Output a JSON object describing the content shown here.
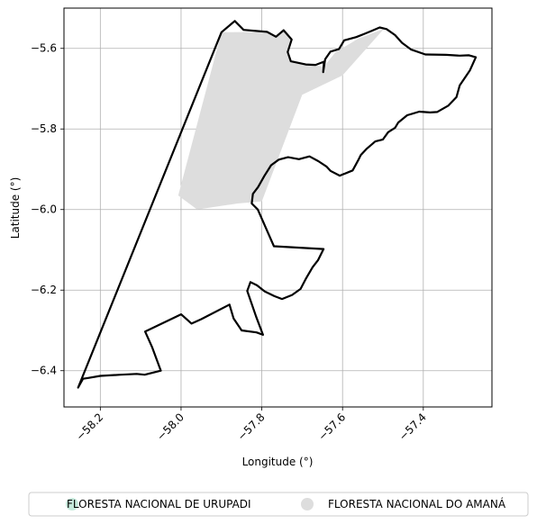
{
  "map": {
    "xlabel": "Longitude (°)",
    "ylabel": "Latitude (°)",
    "xlim": [
      -58.29,
      -57.23
    ],
    "ylim": [
      -6.49,
      -5.5
    ],
    "grid": true,
    "x_ticks": [
      {
        "value": -58.2,
        "label": "−58.2"
      },
      {
        "value": -58.0,
        "label": "−58.0"
      },
      {
        "value": -57.8,
        "label": "−57.8"
      },
      {
        "value": -57.6,
        "label": "−57.6"
      },
      {
        "value": -57.4,
        "label": "−57.4"
      }
    ],
    "y_ticks": [
      {
        "value": -5.6,
        "label": "−5.6"
      },
      {
        "value": -5.8,
        "label": "−5.8"
      },
      {
        "value": -6.0,
        "label": "−6.0"
      },
      {
        "value": -6.2,
        "label": "−6.2"
      },
      {
        "value": -6.4,
        "label": "−6.4"
      }
    ],
    "legend": {
      "placement": "bottom",
      "items": [
        {
          "label": "FLORESTA NACIONAL DE URUPADI",
          "color": "#c7eadc"
        },
        {
          "label": "FLORESTA NACIONAL DO AMANÁ",
          "color": "#dddddd"
        }
      ]
    },
    "regions": [
      {
        "name": "FLORESTA NACIONAL DO AMANÁ",
        "fill": "#dddddd",
        "stroke": "none",
        "coords": [
          [
            -58.007,
            -5.965
          ],
          [
            -57.9,
            -5.56
          ],
          [
            -57.787,
            -5.559
          ],
          [
            -57.762,
            -5.571
          ],
          [
            -57.746,
            -5.555
          ],
          [
            -57.726,
            -5.578
          ],
          [
            -57.736,
            -5.609
          ],
          [
            -57.728,
            -5.632
          ],
          [
            -57.691,
            -5.64
          ],
          [
            -57.646,
            -5.645
          ],
          [
            -57.618,
            -5.61
          ],
          [
            -57.56,
            -5.575
          ],
          [
            -57.498,
            -5.552
          ],
          [
            -57.6,
            -5.667
          ],
          [
            -57.7,
            -5.715
          ],
          [
            -57.8,
            -5.98
          ],
          [
            -57.86,
            -5.985
          ],
          [
            -57.96,
            -6.0
          ],
          [
            -58.007,
            -5.965
          ]
        ]
      },
      {
        "name": "FLORESTA NACIONAL DE URUPADI",
        "fill": "none",
        "stroke": "#000000",
        "coords": [
          [
            -58.255,
            -6.442
          ],
          [
            -57.9,
            -5.56
          ],
          [
            -57.867,
            -5.532
          ],
          [
            -57.845,
            -5.554
          ],
          [
            -57.787,
            -5.559
          ],
          [
            -57.765,
            -5.571
          ],
          [
            -57.746,
            -5.555
          ],
          [
            -57.726,
            -5.578
          ],
          [
            -57.736,
            -5.609
          ],
          [
            -57.728,
            -5.632
          ],
          [
            -57.691,
            -5.64
          ],
          [
            -57.667,
            -5.641
          ],
          [
            -57.646,
            -5.633
          ],
          [
            -57.648,
            -5.659
          ],
          [
            -57.643,
            -5.627
          ],
          [
            -57.63,
            -5.608
          ],
          [
            -57.609,
            -5.602
          ],
          [
            -57.596,
            -5.58
          ],
          [
            -57.566,
            -5.572
          ],
          [
            -57.546,
            -5.564
          ],
          [
            -57.527,
            -5.556
          ],
          [
            -57.508,
            -5.548
          ],
          [
            -57.491,
            -5.552
          ],
          [
            -57.47,
            -5.567
          ],
          [
            -57.453,
            -5.586
          ],
          [
            -57.43,
            -5.603
          ],
          [
            -57.395,
            -5.615
          ],
          [
            -57.344,
            -5.616
          ],
          [
            -57.31,
            -5.618
          ],
          [
            -57.287,
            -5.617
          ],
          [
            -57.27,
            -5.622
          ],
          [
            -57.285,
            -5.655
          ],
          [
            -57.31,
            -5.692
          ],
          [
            -57.318,
            -5.721
          ],
          [
            -57.338,
            -5.742
          ],
          [
            -57.366,
            -5.758
          ],
          [
            -57.383,
            -5.759
          ],
          [
            -57.41,
            -5.757
          ],
          [
            -57.44,
            -5.766
          ],
          [
            -57.462,
            -5.784
          ],
          [
            -57.47,
            -5.797
          ],
          [
            -57.487,
            -5.808
          ],
          [
            -57.5,
            -5.826
          ],
          [
            -57.519,
            -5.831
          ],
          [
            -57.541,
            -5.85
          ],
          [
            -57.555,
            -5.865
          ],
          [
            -57.561,
            -5.877
          ],
          [
            -57.575,
            -5.903
          ],
          [
            -57.607,
            -5.916
          ],
          [
            -57.63,
            -5.904
          ],
          [
            -57.64,
            -5.893
          ],
          [
            -57.66,
            -5.88
          ],
          [
            -57.682,
            -5.868
          ],
          [
            -57.708,
            -5.875
          ],
          [
            -57.735,
            -5.87
          ],
          [
            -57.758,
            -5.876
          ],
          [
            -57.777,
            -5.89
          ],
          [
            -57.794,
            -5.917
          ],
          [
            -57.809,
            -5.944
          ],
          [
            -57.822,
            -5.961
          ],
          [
            -57.825,
            -5.985
          ],
          [
            -57.81,
            -6.0
          ],
          [
            -57.77,
            -6.091
          ],
          [
            -57.647,
            -6.098
          ],
          [
            -57.661,
            -6.126
          ],
          [
            -57.674,
            -6.143
          ],
          [
            -57.691,
            -6.172
          ],
          [
            -57.704,
            -6.197
          ],
          [
            -57.725,
            -6.212
          ],
          [
            -57.75,
            -6.222
          ],
          [
            -57.769,
            -6.215
          ],
          [
            -57.793,
            -6.203
          ],
          [
            -57.812,
            -6.188
          ],
          [
            -57.828,
            -6.18
          ],
          [
            -57.836,
            -6.202
          ],
          [
            -57.814,
            -6.266
          ],
          [
            -57.797,
            -6.311
          ],
          [
            -57.813,
            -6.305
          ],
          [
            -57.85,
            -6.3
          ],
          [
            -57.87,
            -6.27
          ],
          [
            -57.88,
            -6.236
          ],
          [
            -57.95,
            -6.272
          ],
          [
            -57.974,
            -6.283
          ],
          [
            -58.0,
            -6.26
          ],
          [
            -58.089,
            -6.303
          ],
          [
            -58.072,
            -6.341
          ],
          [
            -58.05,
            -6.4
          ],
          [
            -58.09,
            -6.41
          ],
          [
            -58.11,
            -6.408
          ],
          [
            -58.15,
            -6.41
          ],
          [
            -58.2,
            -6.413
          ],
          [
            -58.23,
            -6.418
          ],
          [
            -58.243,
            -6.42
          ],
          [
            -58.255,
            -6.442
          ]
        ]
      }
    ]
  }
}
